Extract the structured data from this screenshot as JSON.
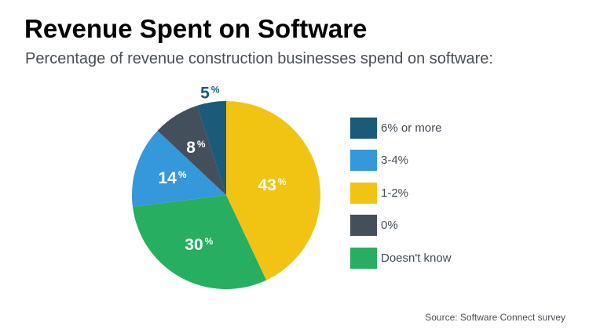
{
  "title": "Revenue Spent on Software",
  "subtitle": "Percentage of revenue construction businesses spend on software:",
  "source": "Source: Software Connect survey",
  "chart_data": {
    "type": "pie",
    "title": "Revenue Spent on Software",
    "slices": [
      {
        "label": "1-2%",
        "value": 43,
        "color": "#f1c414"
      },
      {
        "label": "Doesn't know",
        "value": 30,
        "color": "#27ae60"
      },
      {
        "label": "3-4%",
        "value": 14,
        "color": "#3498db"
      },
      {
        "label": "0%",
        "value": 8,
        "color": "#434f5a"
      },
      {
        "label": "6% or more",
        "value": 5,
        "color": "#1b5a79"
      }
    ],
    "legend": [
      {
        "label": "6% or more",
        "color": "#1b5a79"
      },
      {
        "label": "3-4%",
        "color": "#3498db"
      },
      {
        "label": "1-2%",
        "color": "#f1c414"
      },
      {
        "label": "0%",
        "color": "#434f5a"
      },
      {
        "label": "Doesn't know",
        "color": "#27ae60"
      }
    ],
    "legend_position": "right",
    "value_suffix": "%"
  }
}
